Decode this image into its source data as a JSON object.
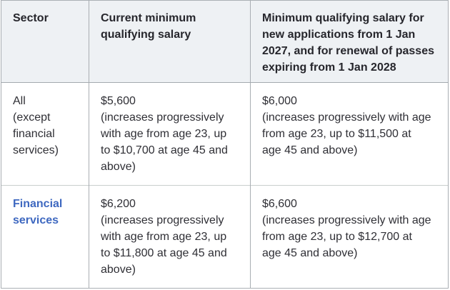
{
  "colors": {
    "header_background": "#eef1f4",
    "border_strong": "#a9aeb3",
    "border_light": "#c8cecd",
    "link_blue": "#3e68c0",
    "text": "#2f2f35"
  },
  "table": {
    "headers": [
      "Sector",
      "Current minimum\nqualifying salary",
      "Minimum qualifying salary for\nnew applications from 1 Jan\n2027, and for renewal of passes\nexpiring from 1 Jan 2028"
    ],
    "rows": [
      {
        "sector": "All\n(except\nfinancial\nservices)",
        "current_salary": "$5,600",
        "current_note": "(increases progressively\nwith age from age 23, up\nto $10,700 at age 45 and\nabove)",
        "new_salary": "$6,000",
        "new_note": "(increases progressively with age\nfrom age 23, up to $11,500 at\nage 45 and above)"
      },
      {
        "sector": "Financial services",
        "current_salary": "$6,200",
        "current_note": "(increases progressively\nwith age from age 23, up\nto $11,800 at age 45 and\nabove)",
        "new_salary": "$6,600",
        "new_note": "(increases progressively with age\nfrom age 23, up to $12,700 at\nage 45 and above)"
      }
    ]
  }
}
